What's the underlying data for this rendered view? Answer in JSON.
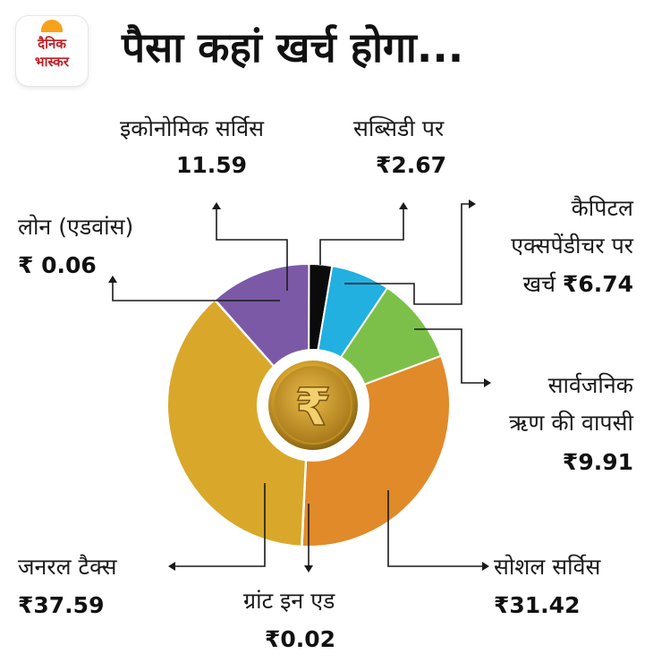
{
  "brand": {
    "logo_line1": "दैनिक",
    "logo_line2": "भास्कर"
  },
  "title": "पैसा कहां खर्च होगा...",
  "chart_data": {
    "type": "pie",
    "unit": "₹",
    "slices": [
      {
        "name": "सब्सिडी पर",
        "value_text": "₹2.67",
        "value": 2.67,
        "color": "#0b0b0b"
      },
      {
        "name": "कैपिटल एक्सपेंडीचर पर खर्च",
        "value_text": "₹6.74",
        "value": 6.74,
        "color": "#22b0e0"
      },
      {
        "name": "सार्वजनिक ऋण की वापसी",
        "value_text": "₹9.91",
        "value": 9.91,
        "color": "#7cc04a"
      },
      {
        "name": "सोशल सर्विस",
        "value_text": "₹31.42",
        "value": 31.42,
        "color": "#e08a2a"
      },
      {
        "name": "ग्रांट इन एड",
        "value_text": "₹0.02",
        "value": 0.02,
        "color": "#d9a82a"
      },
      {
        "name": "जनरल टैक्स",
        "value_text": "₹37.59",
        "value": 37.59,
        "color": "#d9a82a"
      },
      {
        "name": "लोन (एडवांस)",
        "value_text": "₹ 0.06",
        "value": 0.06,
        "color": "#7b59a7"
      },
      {
        "name": "इकोनोमिक सर्विस",
        "value_text": "11.59",
        "value": 11.59,
        "color": "#7b59a7"
      }
    ]
  },
  "labels": {
    "economic": {
      "name": "इकोनोमिक सर्विस",
      "value": "11.59"
    },
    "subsidy": {
      "name": "सब्सिडी पर",
      "value": "₹2.67"
    },
    "loan": {
      "name": "लोन (एडवांस)",
      "value": "₹ 0.06"
    },
    "capital": {
      "line1": "कैपिटल",
      "line2": "एक्सपेंडीचर पर",
      "line3_name": "खर्च",
      "value": "₹6.74"
    },
    "debt": {
      "line1": "सार्वजनिक",
      "line2": "ऋण की वापसी",
      "value": "₹9.91"
    },
    "social": {
      "name": "सोशल सर्विस",
      "value": "₹31.42"
    },
    "grant": {
      "name": "ग्रांट इन एड",
      "value": "₹0.02"
    },
    "general": {
      "name": "जनरल टैक्स",
      "value": "₹37.59"
    }
  },
  "coin": {
    "symbol": "₹"
  }
}
